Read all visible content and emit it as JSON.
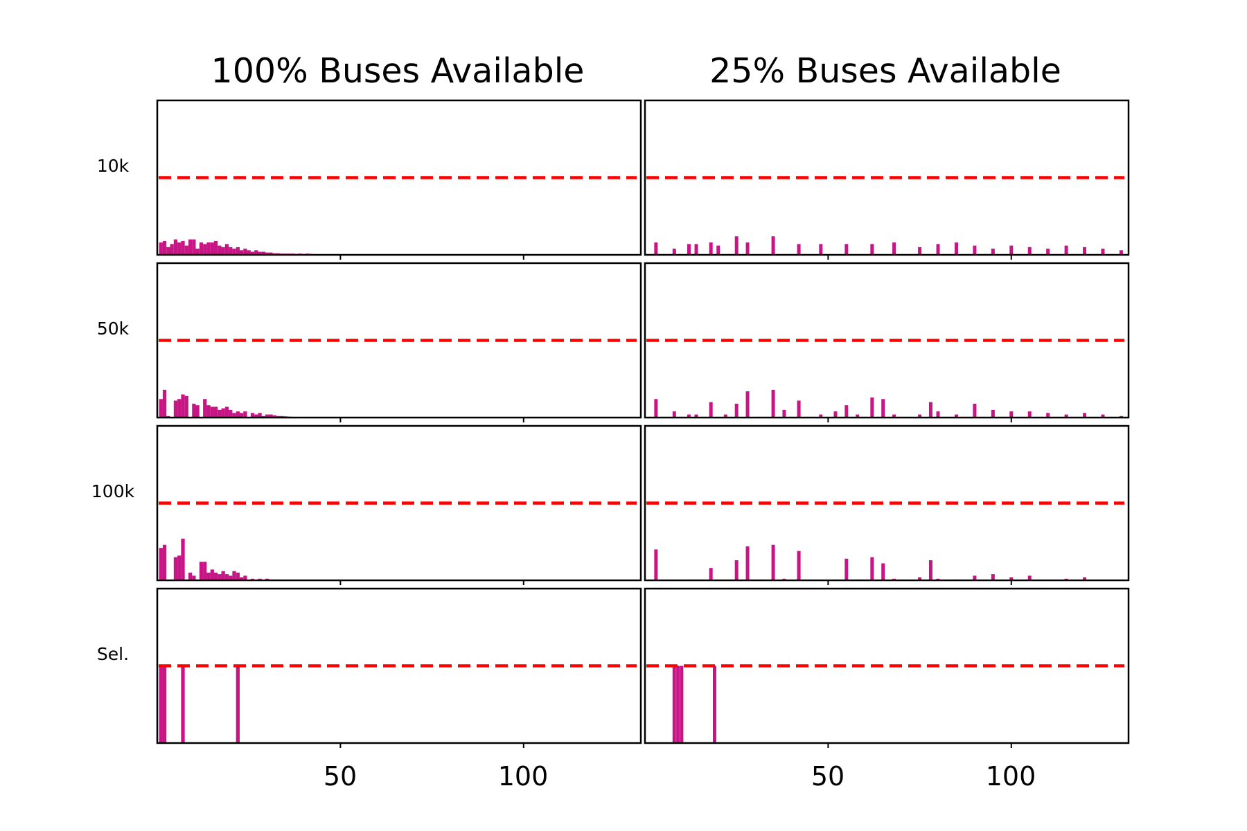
{
  "chart_data": {
    "type": "bar",
    "column_titles": [
      "100% Buses Available",
      "25% Buses Available"
    ],
    "row_labels": [
      "10k",
      "50k",
      "100k",
      "Sel."
    ],
    "x_ticks": [
      50,
      100
    ],
    "xlim": [
      0,
      132
    ],
    "ylim": [
      0,
      1
    ],
    "threshold": 0.5,
    "grid": false,
    "legend": "none",
    "bar_color": "#c71585",
    "threshold_color": "#ff0000",
    "panels": [
      [
        {
          "x": [
            1,
            2,
            3,
            4,
            5,
            6,
            7,
            8,
            9,
            10,
            11,
            12,
            13,
            14,
            15,
            16,
            17,
            18,
            19,
            20,
            21,
            22,
            23,
            24,
            25,
            26,
            27,
            28,
            29,
            30,
            31,
            32,
            33,
            34,
            35,
            36,
            37,
            38,
            39,
            40,
            41,
            42,
            43,
            44,
            45,
            46,
            47,
            48,
            49,
            50
          ],
          "values": [
            0.08,
            0.09,
            0.05,
            0.07,
            0.1,
            0.08,
            0.09,
            0.06,
            0.1,
            0.1,
            0.04,
            0.08,
            0.07,
            0.08,
            0.08,
            0.09,
            0.06,
            0.05,
            0.07,
            0.05,
            0.04,
            0.05,
            0.03,
            0.04,
            0.03,
            0.02,
            0.03,
            0.02,
            0.02,
            0.015,
            0.015,
            0.01,
            0.01,
            0.008,
            0.008,
            0.008,
            0.008,
            0.006,
            0.008,
            0.006,
            0.008,
            0.006,
            0.004,
            0.004,
            0.003,
            0.003,
            0.003,
            0.003,
            0.002,
            0.002
          ]
        },
        {
          "x": [
            3,
            8,
            12,
            14,
            18,
            20,
            25,
            28,
            35,
            42,
            48,
            55,
            62,
            68,
            75,
            80,
            85,
            90,
            95,
            100,
            105,
            110,
            115,
            120,
            125,
            130
          ],
          "values": [
            0.08,
            0.04,
            0.07,
            0.07,
            0.08,
            0.06,
            0.12,
            0.08,
            0.12,
            0.07,
            0.07,
            0.07,
            0.07,
            0.08,
            0.05,
            0.07,
            0.08,
            0.06,
            0.04,
            0.06,
            0.05,
            0.04,
            0.06,
            0.05,
            0.04,
            0.03
          ]
        }
      ],
      [
        {
          "x": [
            1,
            2,
            3,
            4,
            5,
            6,
            7,
            8,
            9,
            10,
            11,
            12,
            13,
            14,
            15,
            16,
            17,
            18,
            19,
            20,
            21,
            22,
            23,
            24,
            25,
            26,
            27,
            28,
            29,
            30,
            31,
            32,
            33,
            34,
            35,
            36,
            37
          ],
          "values": [
            0.12,
            0.18,
            0.01,
            0.0,
            0.11,
            0.12,
            0.15,
            0.14,
            0.0,
            0.09,
            0.08,
            0.0,
            0.12,
            0.08,
            0.07,
            0.07,
            0.05,
            0.06,
            0.07,
            0.05,
            0.03,
            0.04,
            0.03,
            0.04,
            0.0,
            0.03,
            0.02,
            0.03,
            0.01,
            0.02,
            0.02,
            0.015,
            0.01,
            0.01,
            0.008,
            0.006,
            0.005
          ]
        },
        {
          "x": [
            3,
            8,
            12,
            14,
            18,
            22,
            25,
            28,
            35,
            38,
            42,
            48,
            52,
            55,
            58,
            62,
            65,
            68,
            75,
            78,
            80,
            85,
            90,
            95,
            100,
            105,
            110,
            115,
            120,
            125,
            130
          ],
          "values": [
            0.12,
            0.04,
            0.02,
            0.02,
            0.1,
            0.02,
            0.09,
            0.17,
            0.18,
            0.05,
            0.11,
            0.02,
            0.04,
            0.08,
            0.02,
            0.13,
            0.12,
            0.02,
            0.02,
            0.1,
            0.04,
            0.02,
            0.09,
            0.05,
            0.04,
            0.04,
            0.03,
            0.02,
            0.03,
            0.02,
            0.01
          ]
        }
      ],
      [
        {
          "x": [
            1,
            2,
            3,
            4,
            5,
            6,
            7,
            8,
            9,
            10,
            11,
            12,
            13,
            14,
            15,
            16,
            17,
            18,
            19,
            20,
            21,
            22,
            23,
            24,
            25,
            26,
            27,
            28,
            29,
            30,
            31,
            32,
            33,
            34,
            35,
            36,
            37
          ],
          "values": [
            0.21,
            0.23,
            0.0,
            0.0,
            0.15,
            0.16,
            0.27,
            0.0,
            0.05,
            0.03,
            0.0,
            0.12,
            0.12,
            0.05,
            0.07,
            0.05,
            0.04,
            0.06,
            0.04,
            0.03,
            0.06,
            0.05,
            0.02,
            0.03,
            0.0,
            0.01,
            0.0,
            0.01,
            0.0,
            0.01,
            0.005,
            0.005,
            0.005,
            0.003,
            0.003,
            0.002,
            0.002
          ]
        },
        {
          "x": [
            3,
            8,
            12,
            14,
            18,
            22,
            25,
            28,
            35,
            38,
            42,
            48,
            52,
            55,
            58,
            62,
            65,
            68,
            75,
            78,
            80,
            85,
            90,
            95,
            100,
            105,
            110,
            115,
            120,
            125,
            130
          ],
          "values": [
            0.2,
            0.0,
            0.0,
            0.005,
            0.08,
            0.0,
            0.13,
            0.22,
            0.23,
            0.01,
            0.19,
            0.0,
            0.005,
            0.14,
            0.005,
            0.15,
            0.11,
            0.01,
            0.02,
            0.13,
            0.01,
            0.005,
            0.03,
            0.04,
            0.02,
            0.03,
            0.0,
            0.01,
            0.02,
            0.0,
            0.0
          ]
        }
      ],
      [
        {
          "x": [
            1,
            2,
            7,
            22
          ],
          "values": [
            0.5,
            0.5,
            0.5,
            0.5
          ]
        },
        {
          "x": [
            8,
            9,
            10,
            19
          ],
          "values": [
            0.5,
            0.5,
            0.5,
            0.5
          ]
        }
      ]
    ]
  }
}
